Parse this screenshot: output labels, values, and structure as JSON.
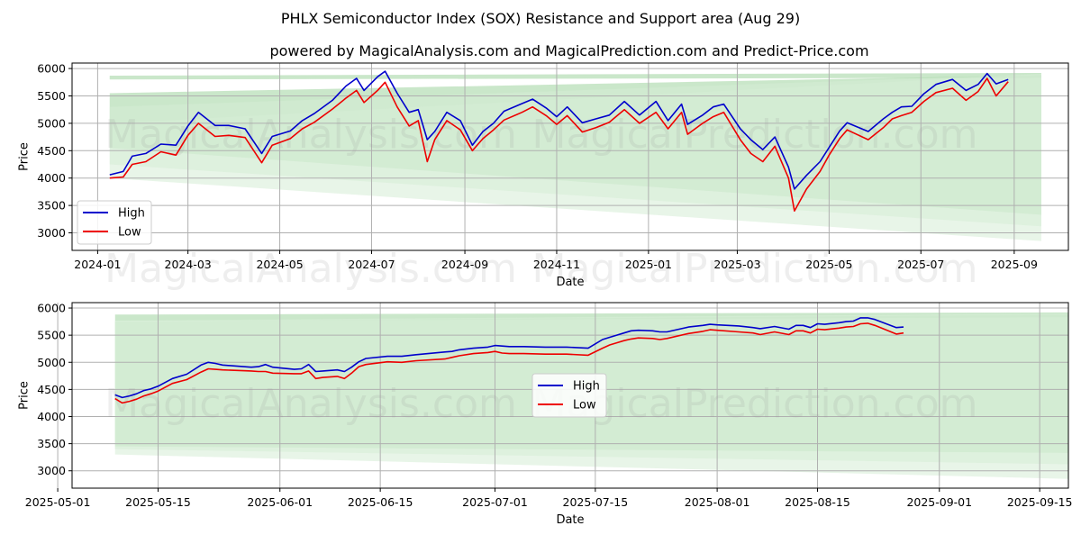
{
  "title": "PHLX Semiconductor Index (SOX) Resistance and Support area (Aug 29)",
  "subtitle": "powered by MagicalAnalysis.com and MagicalPrediction.com and Predict-Price.com",
  "watermarks": [
    "MagicalAnalysis.com",
    "MagicalPrediction.com"
  ],
  "colors": {
    "high": "#0000cc",
    "low": "#ee0000",
    "band_dark": "#9fd49f",
    "band_light": "#d5ecd5",
    "grid": "#b0b0b0"
  },
  "chart_data": [
    {
      "type": "line",
      "xlabel": "Date",
      "ylabel": "Price",
      "xlim": [
        "2023-12-15",
        "2025-10-07"
      ],
      "ylim": [
        2680,
        6100
      ],
      "xticks": [
        "2024-01",
        "2024-03",
        "2024-05",
        "2024-07",
        "2024-09",
        "2024-11",
        "2025-01",
        "2025-03",
        "2025-05",
        "2025-07",
        "2025-09"
      ],
      "xtick_dates": [
        "2024-01-01",
        "2024-03-01",
        "2024-05-01",
        "2024-07-01",
        "2024-09-01",
        "2024-11-01",
        "2025-01-01",
        "2025-03-01",
        "2025-05-01",
        "2025-07-01",
        "2025-09-01"
      ],
      "yticks": [
        3000,
        3500,
        4000,
        4500,
        5000,
        5500,
        6000
      ],
      "legend": [
        "High",
        "Low"
      ],
      "legend_position": "lower-left",
      "bands": [
        {
          "name": "resistance",
          "x": [
            "2024-01-09",
            "2025-09-19"
          ],
          "upper": [
            5870,
            5920
          ],
          "lower": [
            5800,
            5830
          ]
        },
        {
          "name": "support-inner",
          "x": [
            "2024-01-09",
            "2025-09-19"
          ],
          "upper": [
            5550,
            5880
          ],
          "lower": [
            4550,
            3330
          ]
        },
        {
          "name": "support-mid",
          "x": [
            "2024-01-09",
            "2025-09-19"
          ],
          "upper": [
            5300,
            5900
          ],
          "lower": [
            4250,
            3120
          ]
        },
        {
          "name": "support-outer",
          "x": [
            "2024-01-09",
            "2025-09-19"
          ],
          "upper": [
            5000,
            5900
          ],
          "lower": [
            4000,
            2850
          ]
        }
      ],
      "series": [
        {
          "name": "High",
          "x": [
            "2024-01-09",
            "2024-01-18",
            "2024-01-24",
            "2024-02-02",
            "2024-02-12",
            "2024-02-22",
            "2024-03-01",
            "2024-03-08",
            "2024-03-19",
            "2024-03-28",
            "2024-04-08",
            "2024-04-19",
            "2024-04-26",
            "2024-05-08",
            "2024-05-16",
            "2024-05-24",
            "2024-06-05",
            "2024-06-14",
            "2024-06-21",
            "2024-06-26",
            "2024-07-05",
            "2024-07-10",
            "2024-07-18",
            "2024-07-26",
            "2024-08-01",
            "2024-08-07",
            "2024-08-12",
            "2024-08-20",
            "2024-08-29",
            "2024-09-06",
            "2024-09-13",
            "2024-09-20",
            "2024-09-27",
            "2024-10-09",
            "2024-10-16",
            "2024-10-25",
            "2024-11-01",
            "2024-11-08",
            "2024-11-18",
            "2024-11-27",
            "2024-12-06",
            "2024-12-16",
            "2024-12-26",
            "2025-01-06",
            "2025-01-14",
            "2025-01-23",
            "2025-01-27",
            "2025-02-06",
            "2025-02-13",
            "2025-02-20",
            "2025-03-03",
            "2025-03-10",
            "2025-03-18",
            "2025-03-26",
            "2025-04-04",
            "2025-04-08",
            "2025-04-16",
            "2025-04-25",
            "2025-05-01",
            "2025-05-08",
            "2025-05-13",
            "2025-05-27",
            "2025-06-06",
            "2025-06-12",
            "2025-06-18",
            "2025-06-25",
            "2025-07-03",
            "2025-07-11",
            "2025-07-22",
            "2025-07-31",
            "2025-08-08",
            "2025-08-14",
            "2025-08-20",
            "2025-08-28"
          ],
          "values": [
            4060,
            4120,
            4400,
            4450,
            4620,
            4600,
            4950,
            5200,
            4960,
            4960,
            4900,
            4450,
            4760,
            4860,
            5050,
            5180,
            5420,
            5680,
            5820,
            5600,
            5850,
            5950,
            5550,
            5200,
            5250,
            4700,
            4850,
            5200,
            5050,
            4600,
            4850,
            5000,
            5220,
            5360,
            5440,
            5280,
            5120,
            5300,
            5010,
            5080,
            5150,
            5400,
            5150,
            5400,
            5050,
            5350,
            4980,
            5150,
            5300,
            5350,
            4900,
            4700,
            4520,
            4750,
            4200,
            3800,
            4050,
            4300,
            4560,
            4860,
            5010,
            4850,
            5080,
            5200,
            5300,
            5310,
            5540,
            5710,
            5800,
            5600,
            5710,
            5910,
            5720,
            5800
          ]
        },
        {
          "name": "Low",
          "x": [
            "2024-01-09",
            "2024-01-18",
            "2024-01-24",
            "2024-02-02",
            "2024-02-12",
            "2024-02-22",
            "2024-03-01",
            "2024-03-08",
            "2024-03-19",
            "2024-03-28",
            "2024-04-08",
            "2024-04-19",
            "2024-04-26",
            "2024-05-08",
            "2024-05-16",
            "2024-05-24",
            "2024-06-05",
            "2024-06-14",
            "2024-06-21",
            "2024-06-26",
            "2024-07-05",
            "2024-07-10",
            "2024-07-18",
            "2024-07-26",
            "2024-08-01",
            "2024-08-07",
            "2024-08-12",
            "2024-08-20",
            "2024-08-29",
            "2024-09-06",
            "2024-09-13",
            "2024-09-20",
            "2024-09-27",
            "2024-10-09",
            "2024-10-16",
            "2024-10-25",
            "2024-11-01",
            "2024-11-08",
            "2024-11-18",
            "2024-11-27",
            "2024-12-06",
            "2024-12-16",
            "2024-12-26",
            "2025-01-06",
            "2025-01-14",
            "2025-01-23",
            "2025-01-27",
            "2025-02-06",
            "2025-02-13",
            "2025-02-20",
            "2025-03-03",
            "2025-03-10",
            "2025-03-18",
            "2025-03-26",
            "2025-04-04",
            "2025-04-08",
            "2025-04-16",
            "2025-04-25",
            "2025-05-01",
            "2025-05-08",
            "2025-05-13",
            "2025-05-27",
            "2025-06-06",
            "2025-06-12",
            "2025-06-18",
            "2025-06-25",
            "2025-07-03",
            "2025-07-11",
            "2025-07-22",
            "2025-07-31",
            "2025-08-08",
            "2025-08-14",
            "2025-08-20",
            "2025-08-28"
          ],
          "values": [
            4000,
            4020,
            4250,
            4300,
            4480,
            4420,
            4780,
            5000,
            4760,
            4780,
            4740,
            4280,
            4600,
            4720,
            4900,
            5020,
            5260,
            5460,
            5600,
            5380,
            5600,
            5750,
            5300,
            4950,
            5050,
            4300,
            4700,
            5050,
            4880,
            4500,
            4720,
            4880,
            5060,
            5200,
            5300,
            5140,
            4980,
            5140,
            4840,
            4920,
            5020,
            5250,
            5000,
            5200,
            4900,
            5200,
            4800,
            5000,
            5120,
            5200,
            4700,
            4450,
            4300,
            4580,
            4000,
            3400,
            3800,
            4120,
            4420,
            4720,
            4880,
            4700,
            4920,
            5080,
            5140,
            5200,
            5400,
            5560,
            5640,
            5420,
            5580,
            5820,
            5500,
            5760
          ]
        }
      ]
    },
    {
      "type": "line",
      "xlabel": "Date",
      "ylabel": "Price",
      "xlim": [
        "2025-05-03",
        "2025-09-19"
      ],
      "ylim": [
        2680,
        6100
      ],
      "xticks": [
        "2025-05-01",
        "2025-05-15",
        "2025-06-01",
        "2025-06-15",
        "2025-07-01",
        "2025-07-15",
        "2025-08-01",
        "2025-08-15",
        "2025-09-01",
        "2025-09-15"
      ],
      "yticks": [
        3000,
        3500,
        4000,
        4500,
        5000,
        5500,
        6000
      ],
      "legend": [
        "High",
        "Low"
      ],
      "legend_position": "center",
      "bands": [
        {
          "name": "resistance",
          "x": [
            "2025-05-09",
            "2025-09-19"
          ],
          "upper": [
            5880,
            5920
          ],
          "lower": [
            5760,
            5830
          ]
        },
        {
          "name": "support-inner",
          "x": [
            "2025-05-09",
            "2025-09-19"
          ],
          "upper": [
            5750,
            5880
          ],
          "lower": [
            3450,
            3330
          ]
        },
        {
          "name": "support-mid",
          "x": [
            "2025-05-09",
            "2025-09-19"
          ],
          "upper": [
            5760,
            5900
          ],
          "lower": [
            3400,
            3120
          ]
        },
        {
          "name": "support-outer",
          "x": [
            "2025-05-09",
            "2025-09-19"
          ],
          "upper": [
            5770,
            5900
          ],
          "lower": [
            3300,
            2850
          ]
        }
      ],
      "series": [
        {
          "name": "High",
          "x": [
            "2025-05-09",
            "2025-05-10",
            "2025-05-11",
            "2025-05-12",
            "2025-05-13",
            "2025-05-14",
            "2025-05-15",
            "2025-05-17",
            "2025-05-19",
            "2025-05-21",
            "2025-05-22",
            "2025-05-23",
            "2025-05-24",
            "2025-05-28",
            "2025-05-29",
            "2025-05-30",
            "2025-05-31",
            "2025-06-03",
            "2025-06-04",
            "2025-06-05",
            "2025-06-06",
            "2025-06-07",
            "2025-06-09",
            "2025-06-10",
            "2025-06-11",
            "2025-06-12",
            "2025-06-13",
            "2025-06-16",
            "2025-06-18",
            "2025-06-20",
            "2025-06-24",
            "2025-06-25",
            "2025-06-26",
            "2025-06-28",
            "2025-06-30",
            "2025-07-01",
            "2025-07-02",
            "2025-07-03",
            "2025-07-05",
            "2025-07-08",
            "2025-07-11",
            "2025-07-14",
            "2025-07-16",
            "2025-07-17",
            "2025-07-18",
            "2025-07-19",
            "2025-07-20",
            "2025-07-21",
            "2025-07-23",
            "2025-07-24",
            "2025-07-25",
            "2025-07-28",
            "2025-07-30",
            "2025-07-31",
            "2025-08-01",
            "2025-08-04",
            "2025-08-06",
            "2025-08-07",
            "2025-08-09",
            "2025-08-11",
            "2025-08-12",
            "2025-08-13",
            "2025-08-14",
            "2025-08-15",
            "2025-08-16",
            "2025-08-18",
            "2025-08-19",
            "2025-08-20",
            "2025-08-21",
            "2025-08-22",
            "2025-08-23",
            "2025-08-26",
            "2025-08-27"
          ],
          "values": [
            4400,
            4350,
            4380,
            4420,
            4480,
            4510,
            4560,
            4700,
            4780,
            4950,
            5000,
            4980,
            4950,
            4910,
            4920,
            4960,
            4910,
            4870,
            4880,
            4960,
            4830,
            4840,
            4860,
            4830,
            4910,
            5010,
            5070,
            5110,
            5110,
            5140,
            5190,
            5200,
            5230,
            5260,
            5280,
            5310,
            5300,
            5290,
            5290,
            5280,
            5280,
            5260,
            5420,
            5460,
            5500,
            5540,
            5580,
            5590,
            5580,
            5560,
            5560,
            5650,
            5680,
            5700,
            5690,
            5670,
            5640,
            5620,
            5660,
            5610,
            5680,
            5680,
            5640,
            5710,
            5700,
            5730,
            5750,
            5760,
            5820,
            5820,
            5790,
            5640,
            5650
          ]
        },
        {
          "name": "Low",
          "x": [
            "2025-05-09",
            "2025-05-10",
            "2025-05-11",
            "2025-05-12",
            "2025-05-13",
            "2025-05-14",
            "2025-05-15",
            "2025-05-17",
            "2025-05-19",
            "2025-05-21",
            "2025-05-22",
            "2025-05-23",
            "2025-05-24",
            "2025-05-28",
            "2025-05-29",
            "2025-05-30",
            "2025-05-31",
            "2025-06-03",
            "2025-06-04",
            "2025-06-05",
            "2025-06-06",
            "2025-06-07",
            "2025-06-09",
            "2025-06-10",
            "2025-06-11",
            "2025-06-12",
            "2025-06-13",
            "2025-06-16",
            "2025-06-18",
            "2025-06-20",
            "2025-06-24",
            "2025-06-25",
            "2025-06-26",
            "2025-06-28",
            "2025-06-30",
            "2025-07-01",
            "2025-07-02",
            "2025-07-03",
            "2025-07-05",
            "2025-07-08",
            "2025-07-11",
            "2025-07-14",
            "2025-07-16",
            "2025-07-17",
            "2025-07-18",
            "2025-07-19",
            "2025-07-20",
            "2025-07-21",
            "2025-07-23",
            "2025-07-24",
            "2025-07-25",
            "2025-07-28",
            "2025-07-30",
            "2025-07-31",
            "2025-08-01",
            "2025-08-04",
            "2025-08-06",
            "2025-08-07",
            "2025-08-09",
            "2025-08-11",
            "2025-08-12",
            "2025-08-13",
            "2025-08-14",
            "2025-08-15",
            "2025-08-16",
            "2025-08-18",
            "2025-08-19",
            "2025-08-20",
            "2025-08-21",
            "2025-08-22",
            "2025-08-23",
            "2025-08-26",
            "2025-08-27"
          ],
          "values": [
            4330,
            4250,
            4280,
            4320,
            4380,
            4420,
            4470,
            4610,
            4680,
            4820,
            4880,
            4870,
            4860,
            4840,
            4830,
            4830,
            4800,
            4790,
            4790,
            4840,
            4700,
            4720,
            4740,
            4700,
            4800,
            4920,
            4960,
            5010,
            5000,
            5030,
            5060,
            5090,
            5120,
            5160,
            5180,
            5200,
            5170,
            5160,
            5160,
            5150,
            5150,
            5130,
            5260,
            5320,
            5360,
            5400,
            5430,
            5450,
            5440,
            5420,
            5440,
            5530,
            5570,
            5600,
            5590,
            5560,
            5540,
            5510,
            5560,
            5510,
            5580,
            5580,
            5540,
            5610,
            5600,
            5630,
            5650,
            5660,
            5710,
            5720,
            5680,
            5520,
            5540
          ]
        }
      ]
    }
  ]
}
